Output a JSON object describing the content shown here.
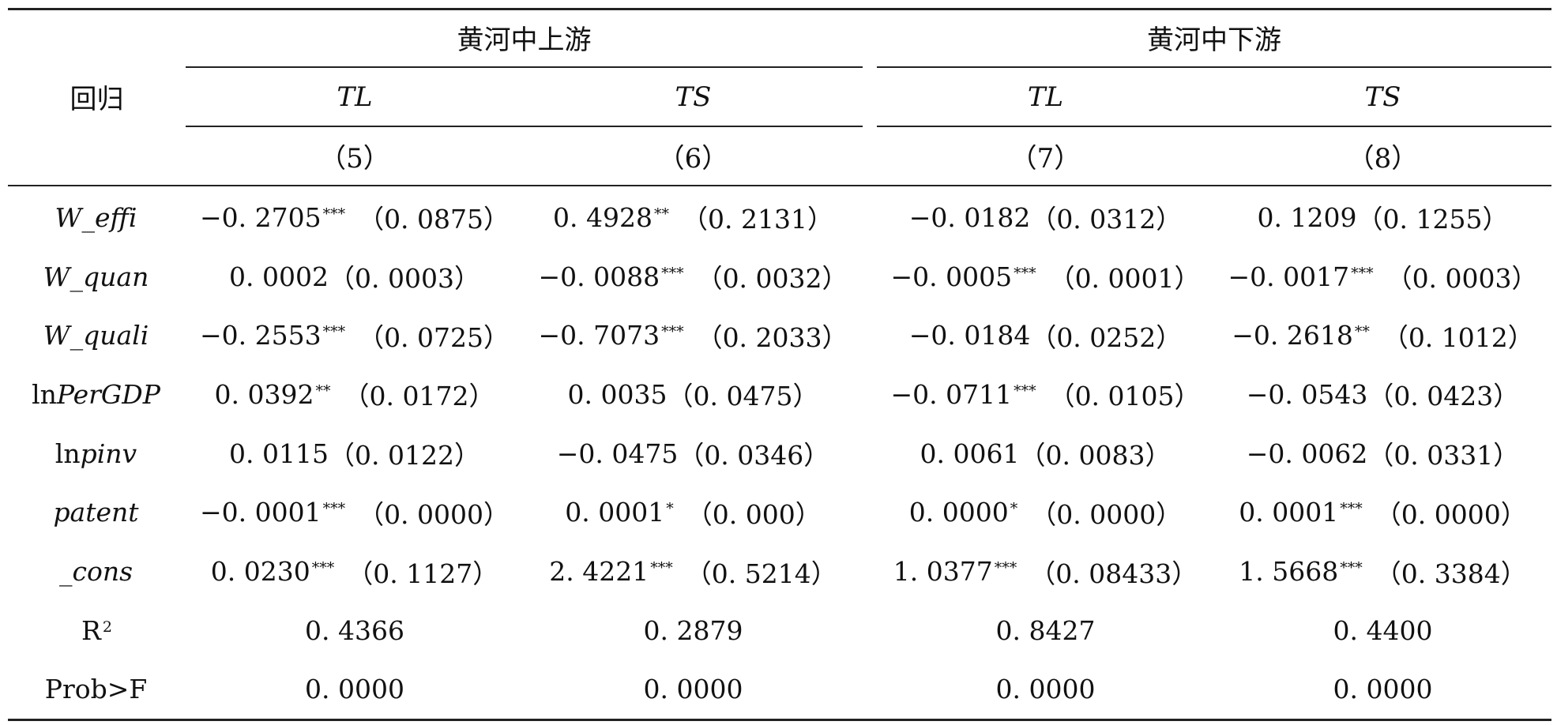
{
  "header": {
    "row_label": "回归",
    "groups": [
      "黄河中上游",
      "黄河中下游"
    ],
    "subcols": [
      "TL",
      "TS",
      "TL",
      "TS"
    ],
    "models": [
      "（5）",
      "（6）",
      "（7）",
      "（8）"
    ]
  },
  "rows": [
    {
      "label_pre": "",
      "label_it": "W_effi",
      "label_post": "",
      "label_sup": "",
      "cells": [
        {
          "coef": "−0. 2705",
          "stars": "***",
          "se": "（0. 0875）"
        },
        {
          "coef": "0. 4928",
          "stars": "**",
          "se": "（0. 2131）"
        },
        {
          "coef": "−0. 0182",
          "stars": "",
          "se": "（0. 0312）"
        },
        {
          "coef": "0. 1209",
          "stars": "",
          "se": "（0. 1255）"
        }
      ]
    },
    {
      "label_pre": "",
      "label_it": "W_quan",
      "label_post": "",
      "label_sup": "",
      "cells": [
        {
          "coef": "0. 0002",
          "stars": "",
          "se": "（0. 0003）"
        },
        {
          "coef": "−0. 0088",
          "stars": "***",
          "se": "（0. 0032）"
        },
        {
          "coef": "−0. 0005",
          "stars": "***",
          "se": "（0. 0001）"
        },
        {
          "coef": "−0. 0017",
          "stars": "***",
          "se": "（0. 0003）"
        }
      ]
    },
    {
      "label_pre": "",
      "label_it": "W_quali",
      "label_post": "",
      "label_sup": "",
      "cells": [
        {
          "coef": "−0. 2553",
          "stars": "***",
          "se": "（0. 0725）"
        },
        {
          "coef": "−0. 7073",
          "stars": "***",
          "se": "（0. 2033）"
        },
        {
          "coef": "−0. 0184",
          "stars": "",
          "se": "（0. 0252）"
        },
        {
          "coef": "−0. 2618",
          "stars": "**",
          "se": "（0. 1012）"
        }
      ]
    },
    {
      "label_pre": "ln",
      "label_it": "PerGDP",
      "label_post": "",
      "label_sup": "",
      "cells": [
        {
          "coef": "0. 0392",
          "stars": "**",
          "se": "（0. 0172）"
        },
        {
          "coef": "0. 0035",
          "stars": "",
          "se": "（0. 0475）"
        },
        {
          "coef": "−0. 0711",
          "stars": "***",
          "se": "（0. 0105）"
        },
        {
          "coef": "−0. 0543",
          "stars": "",
          "se": "（0. 0423）"
        }
      ]
    },
    {
      "label_pre": "ln",
      "label_it": "pinv",
      "label_post": "",
      "label_sup": "",
      "cells": [
        {
          "coef": "0. 0115",
          "stars": "",
          "se": "（0. 0122）"
        },
        {
          "coef": "−0. 0475",
          "stars": "",
          "se": "（0. 0346）"
        },
        {
          "coef": "0. 0061",
          "stars": "",
          "se": "（0. 0083）"
        },
        {
          "coef": "−0. 0062",
          "stars": "",
          "se": "（0. 0331）"
        }
      ]
    },
    {
      "label_pre": "",
      "label_it": "patent",
      "label_post": "",
      "label_sup": "",
      "cells": [
        {
          "coef": "−0. 0001",
          "stars": "***",
          "se": "（0. 0000）"
        },
        {
          "coef": "0. 0001",
          "stars": "*",
          "se": "（0. 000）"
        },
        {
          "coef": "0. 0000",
          "stars": "*",
          "se": "（0. 0000）"
        },
        {
          "coef": "0. 0001",
          "stars": "***",
          "se": "（0. 0000）"
        }
      ]
    },
    {
      "label_pre": "",
      "label_it": "_cons",
      "label_post": "",
      "label_sup": "",
      "cells": [
        {
          "coef": "0. 0230",
          "stars": "***",
          "se": "（0. 1127）"
        },
        {
          "coef": "2. 4221",
          "stars": "***",
          "se": "（0. 5214）"
        },
        {
          "coef": "1. 0377",
          "stars": "***",
          "se": "（0. 08433）"
        },
        {
          "coef": "1. 5668",
          "stars": "***",
          "se": "（0. 3384）"
        }
      ]
    },
    {
      "label_pre": "",
      "label_it": "",
      "label_post": "R",
      "label_sup": "2",
      "cells": [
        {
          "coef": "0. 4366",
          "stars": "",
          "se": ""
        },
        {
          "coef": "0. 2879",
          "stars": "",
          "se": ""
        },
        {
          "coef": "0. 8427",
          "stars": "",
          "se": ""
        },
        {
          "coef": "0. 4400",
          "stars": "",
          "se": ""
        }
      ]
    },
    {
      "label_pre": "",
      "label_it": "",
      "label_post": "Prob>F",
      "label_sup": "",
      "cells": [
        {
          "coef": "0. 0000",
          "stars": "",
          "se": ""
        },
        {
          "coef": "0. 0000",
          "stars": "",
          "se": ""
        },
        {
          "coef": "0. 0000",
          "stars": "",
          "se": ""
        },
        {
          "coef": "0. 0000",
          "stars": "",
          "se": ""
        }
      ]
    }
  ]
}
